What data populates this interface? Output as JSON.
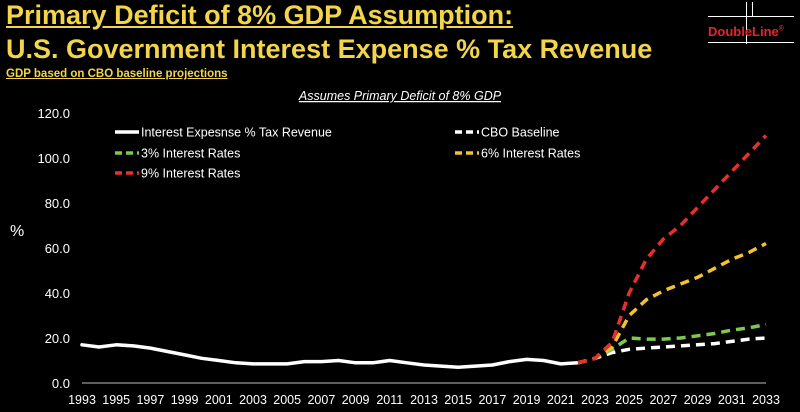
{
  "header": {
    "title_line1": "Primary Deficit of 8% GDP Assumption:",
    "title_line2": "U.S. Government Interest Expense % Tax Revenue",
    "subtitle": "GDP based on CBO baseline projections"
  },
  "logo": {
    "text": "DoubleLine",
    "mark": "®",
    "color": "#e0262e"
  },
  "chart_data": {
    "type": "line",
    "title": "Assumes Primary Deficit of 8% GDP",
    "ylabel": "%",
    "xlabel": "",
    "ylim": [
      0,
      120
    ],
    "yticks": [
      0,
      20,
      40,
      60,
      80,
      100,
      120
    ],
    "ytick_labels": [
      "0.0",
      "20.0",
      "40.0",
      "60.0",
      "80.0",
      "100.0",
      "120.0"
    ],
    "xlim": [
      1993,
      2033
    ],
    "xticks": [
      1993,
      1995,
      1997,
      1999,
      2001,
      2003,
      2005,
      2007,
      2009,
      2011,
      2013,
      2015,
      2017,
      2019,
      2021,
      2023,
      2025,
      2027,
      2029,
      2031,
      2033
    ],
    "grid": false,
    "legend_position": "top-left",
    "series": [
      {
        "name": "Interest Expesnse % Tax Revenue",
        "color": "#ffffff",
        "style": "solid",
        "x": [
          1993,
          1994,
          1995,
          1996,
          1997,
          1998,
          1999,
          2000,
          2001,
          2002,
          2003,
          2004,
          2005,
          2006,
          2007,
          2008,
          2009,
          2010,
          2011,
          2012,
          2013,
          2014,
          2015,
          2016,
          2017,
          2018,
          2019,
          2020,
          2021,
          2022
        ],
        "y": [
          17,
          16,
          17,
          16.5,
          15.5,
          14,
          12.5,
          11,
          10,
          9,
          8.5,
          8.5,
          8.5,
          9.5,
          9.5,
          10,
          9,
          9,
          10,
          9,
          8,
          7.5,
          7,
          7.5,
          8,
          9.5,
          10.5,
          10,
          8.5,
          9
        ]
      },
      {
        "name": "CBO Baseline",
        "color": "#ffffff",
        "style": "dashed",
        "x": [
          2022,
          2023,
          2024,
          2025,
          2026,
          2027,
          2028,
          2029,
          2030,
          2031,
          2032,
          2033
        ],
        "y": [
          9,
          11,
          13.5,
          15,
          15.5,
          16,
          16.5,
          17,
          17.5,
          18.5,
          19.5,
          20
        ]
      },
      {
        "name": "3% Interest Rates",
        "color": "#7ec850",
        "style": "dashed",
        "x": [
          2022,
          2023,
          2024,
          2025,
          2026,
          2027,
          2028,
          2029,
          2030,
          2031,
          2032,
          2033
        ],
        "y": [
          9,
          11,
          15,
          20,
          19.5,
          19.5,
          20,
          21,
          22,
          23.5,
          24.5,
          26
        ]
      },
      {
        "name": "6% Interest Rates",
        "color": "#f2c230",
        "style": "dashed",
        "x": [
          2022,
          2023,
          2024,
          2025,
          2026,
          2027,
          2028,
          2029,
          2030,
          2031,
          2032,
          2033
        ],
        "y": [
          9,
          11,
          16,
          30,
          37,
          41,
          44,
          47,
          51,
          55,
          58,
          62
        ]
      },
      {
        "name": "9% Interest Rates",
        "color": "#e8302a",
        "style": "dashed",
        "x": [
          2022,
          2023,
          2024,
          2025,
          2026,
          2027,
          2028,
          2029,
          2030,
          2031,
          2032,
          2033
        ],
        "y": [
          9,
          11,
          18,
          40,
          55,
          64,
          70,
          78,
          86,
          94,
          102,
          110
        ]
      }
    ]
  }
}
